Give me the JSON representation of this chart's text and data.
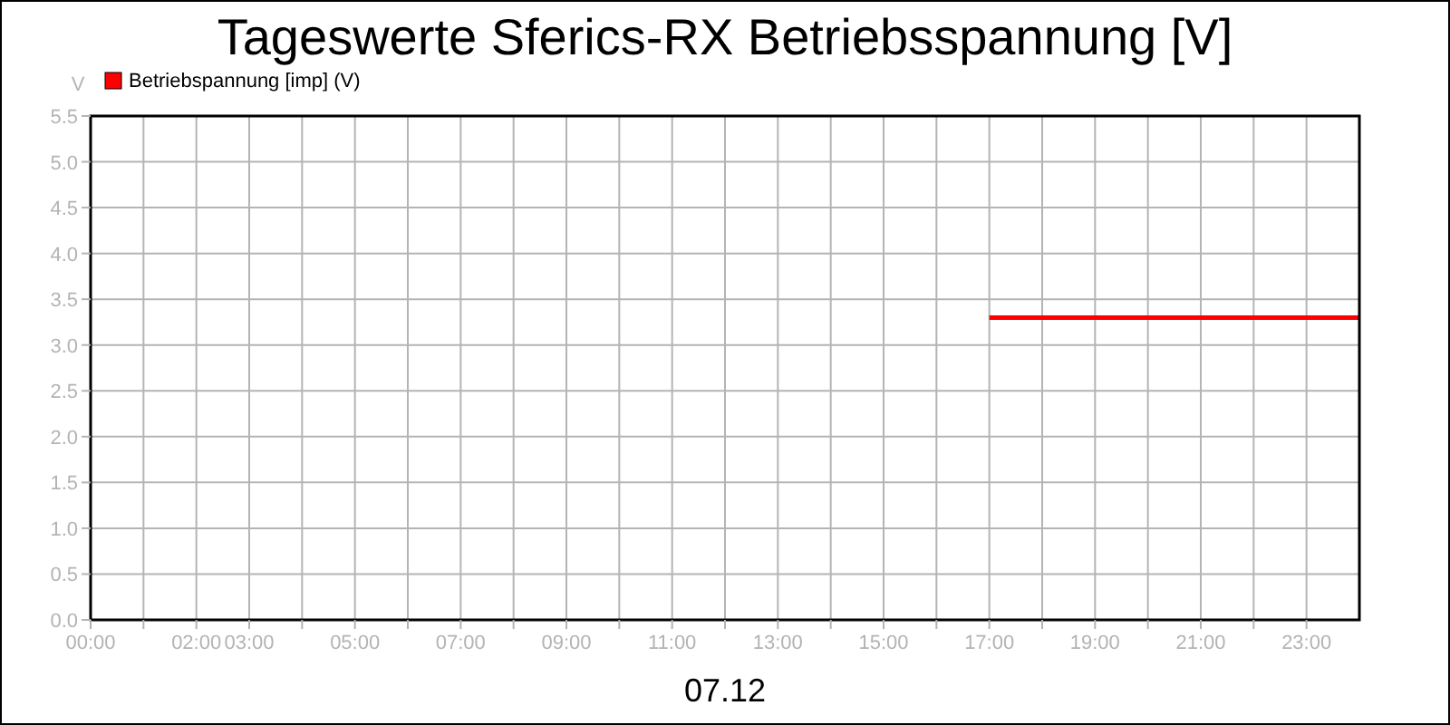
{
  "chart_data": {
    "type": "line",
    "title": "Tageswerte Sferics-RX Betriebsspannung [V]",
    "xlabel": "07.12",
    "ylabel": "V",
    "xlim": [
      0,
      24
    ],
    "xticks": [
      {
        "value": 0,
        "label": "00:00"
      },
      {
        "value": 1,
        "label": null
      },
      {
        "value": 2,
        "label": "02:00"
      },
      {
        "value": 3,
        "label": "03:00"
      },
      {
        "value": 4,
        "label": null
      },
      {
        "value": 5,
        "label": "05:00"
      },
      {
        "value": 6,
        "label": null
      },
      {
        "value": 7,
        "label": "07:00"
      },
      {
        "value": 8,
        "label": null
      },
      {
        "value": 9,
        "label": "09:00"
      },
      {
        "value": 10,
        "label": null
      },
      {
        "value": 11,
        "label": "11:00"
      },
      {
        "value": 12,
        "label": null
      },
      {
        "value": 13,
        "label": "13:00"
      },
      {
        "value": 14,
        "label": null
      },
      {
        "value": 15,
        "label": "15:00"
      },
      {
        "value": 16,
        "label": null
      },
      {
        "value": 17,
        "label": "17:00"
      },
      {
        "value": 18,
        "label": null
      },
      {
        "value": 19,
        "label": "19:00"
      },
      {
        "value": 20,
        "label": null
      },
      {
        "value": 21,
        "label": "21:00"
      },
      {
        "value": 22,
        "label": null
      },
      {
        "value": 23,
        "label": "23:00"
      }
    ],
    "ylim": [
      0,
      5.5
    ],
    "yticks": [
      {
        "value": 0,
        "label": "0.0"
      },
      {
        "value": 0.5,
        "label": "0.5"
      },
      {
        "value": 1,
        "label": "1.0"
      },
      {
        "value": 1.5,
        "label": "1.5"
      },
      {
        "value": 2,
        "label": "2.0"
      },
      {
        "value": 2.5,
        "label": "2.5"
      },
      {
        "value": 3,
        "label": "3.0"
      },
      {
        "value": 3.5,
        "label": "3.5"
      },
      {
        "value": 4,
        "label": "4.0"
      },
      {
        "value": 4.5,
        "label": "4.5"
      },
      {
        "value": 5,
        "label": "5.0"
      },
      {
        "value": 5.5,
        "label": "5.5"
      }
    ],
    "grid": true,
    "legend": "top left",
    "marker": "none",
    "line_style": "solid",
    "series": [
      {
        "name": "Betriebspannung [imp] (V)",
        "color": "#ff0000",
        "x": [
          17,
          24
        ],
        "values": [
          3.3,
          3.3
        ]
      }
    ]
  }
}
